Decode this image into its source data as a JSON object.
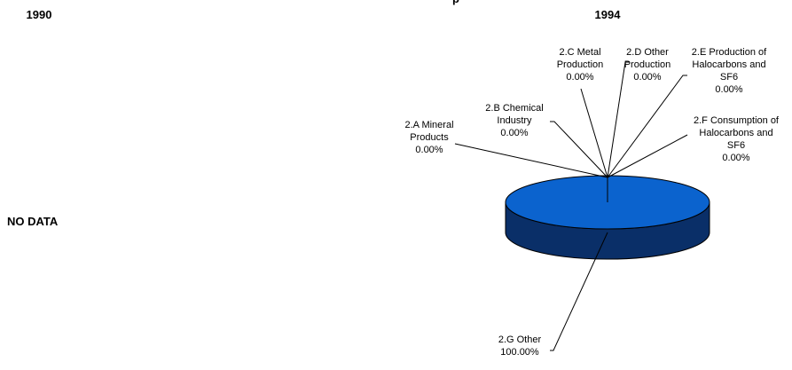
{
  "page": {
    "title_left": "1990",
    "title_right": "1994",
    "partial_title": "p",
    "no_data_text": "NO DATA"
  },
  "chart_data": [
    {
      "panel": "1990",
      "type": "pie",
      "title": "1990",
      "note": "NO DATA",
      "categories": [],
      "values": []
    },
    {
      "panel": "1994",
      "type": "pie",
      "title": "1994",
      "categories": [
        "2.A Mineral Products",
        "2.B Chemical Industry",
        "2.C Metal Production",
        "2.D Other Production",
        "2.E Production of Halocarbons and SF6",
        "2.F Consumption of Halocarbons and SF6",
        "2.G Other"
      ],
      "values": [
        0.0,
        0.0,
        0.0,
        0.0,
        0.0,
        0.0,
        100.0
      ],
      "value_labels": [
        "0.00%",
        "0.00%",
        "0.00%",
        "0.00%",
        "0.00%",
        "0.00%",
        "100.00%"
      ],
      "label_lines": [
        [
          "2.A Mineral",
          "Products",
          "0.00%"
        ],
        [
          "2.B Chemical",
          "Industry",
          "0.00%"
        ],
        [
          "2.C Metal",
          "Production",
          "0.00%"
        ],
        [
          "2.D Other",
          "Production",
          "0.00%"
        ],
        [
          "2.E Production of",
          "Halocarbons and",
          "SF6",
          "0.00%"
        ],
        [
          "2.F Consumption of",
          "Halocarbons and",
          "SF6",
          "0.00%"
        ],
        [
          "2.G Other",
          "100.00%"
        ]
      ],
      "colors": {
        "top": "#0B63CE",
        "side": "#0A2F68",
        "outline": "#000000"
      },
      "style": "3d-pie",
      "legend": "none"
    }
  ]
}
